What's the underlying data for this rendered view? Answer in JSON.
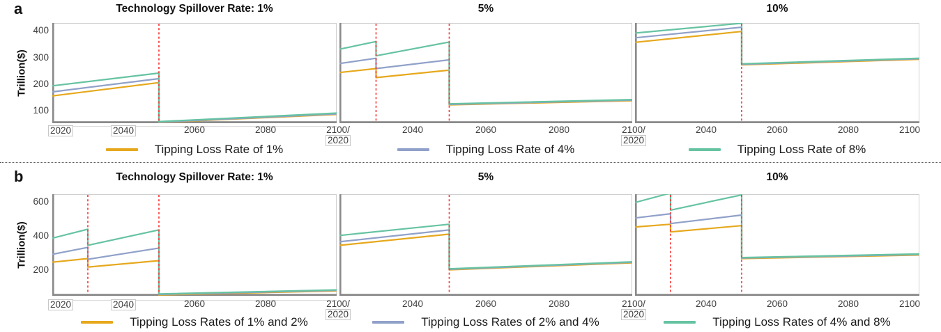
{
  "colors": {
    "gold": "#E6A81C",
    "blue": "#90A1C9",
    "green": "#66C3A2",
    "tipping_dash": "#FA3A3A",
    "axis_dark": "#8A8A8A",
    "axis_light": "#CFCFCF"
  },
  "chart_data": {
    "type": "line",
    "x_unit": "year",
    "xlim": [
      2020,
      2100
    ],
    "rows": [
      {
        "label": "a",
        "ylabel": "Trillion($)",
        "ylim": [
          52,
          430
        ],
        "y_ticks": [
          100,
          200,
          300,
          400
        ],
        "legend": [
          {
            "color": "gold",
            "label": "Tipping Loss Rate of 1%"
          },
          {
            "color": "blue",
            "label": "Tipping Loss Rate of 4%"
          },
          {
            "color": "green",
            "label": "Tipping Loss Rate of 8%"
          }
        ],
        "boundaries": [
          {
            "between": [
              0,
              1
            ],
            "top": "2100/",
            "bottom": "2020",
            "bottom_boxed": true
          },
          {
            "between": [
              1,
              2
            ],
            "top": "2100/",
            "bottom": "2020",
            "bottom_boxed": true
          }
        ],
        "panels": [
          {
            "title": "Technology Spillover Rate: 1%",
            "tipping_years": [
              2050
            ],
            "x_ticks": [
              {
                "year": 2020,
                "label": "2020",
                "boxed": true
              },
              {
                "year": 2040,
                "label": "2040",
                "boxed": true
              },
              {
                "year": 2060,
                "label": "2060"
              },
              {
                "year": 2080,
                "label": "2080"
              }
            ],
            "series": [
              {
                "color": "gold",
                "points": [
                  [
                    2020,
                    155
                  ],
                  [
                    2050,
                    205
                  ],
                  [
                    2050,
                    55
                  ],
                  [
                    2100,
                    85
                  ]
                ]
              },
              {
                "color": "blue",
                "points": [
                  [
                    2020,
                    170
                  ],
                  [
                    2050,
                    220
                  ],
                  [
                    2050,
                    56
                  ],
                  [
                    2100,
                    87
                  ]
                ]
              },
              {
                "color": "green",
                "points": [
                  [
                    2020,
                    193
                  ],
                  [
                    2050,
                    241
                  ],
                  [
                    2050,
                    58
                  ],
                  [
                    2100,
                    90
                  ]
                ]
              }
            ]
          },
          {
            "title": "5%",
            "tipping_years": [
              2030,
              2050
            ],
            "x_ticks": [
              {
                "year": 2040,
                "label": "2040"
              },
              {
                "year": 2060,
                "label": "2060"
              },
              {
                "year": 2080,
                "label": "2080"
              }
            ],
            "series": [
              {
                "color": "gold",
                "points": [
                  [
                    2020,
                    243
                  ],
                  [
                    2030,
                    258
                  ],
                  [
                    2030,
                    224
                  ],
                  [
                    2050,
                    252
                  ],
                  [
                    2050,
                    121
                  ],
                  [
                    2100,
                    137
                  ]
                ]
              },
              {
                "color": "blue",
                "points": [
                  [
                    2020,
                    277
                  ],
                  [
                    2030,
                    297
                  ],
                  [
                    2030,
                    258
                  ],
                  [
                    2050,
                    291
                  ],
                  [
                    2050,
                    123
                  ],
                  [
                    2100,
                    139
                  ]
                ]
              },
              {
                "color": "green",
                "points": [
                  [
                    2020,
                    331
                  ],
                  [
                    2030,
                    360
                  ],
                  [
                    2030,
                    306
                  ],
                  [
                    2050,
                    358
                  ],
                  [
                    2050,
                    125
                  ],
                  [
                    2100,
                    141
                  ]
                ]
              }
            ]
          },
          {
            "title": "10%",
            "tipping_years": [
              2050
            ],
            "x_ticks": [
              {
                "year": 2040,
                "label": "2040"
              },
              {
                "year": 2060,
                "label": "2060"
              },
              {
                "year": 2080,
                "label": "2080"
              },
              {
                "year": 2100,
                "label": "2100"
              }
            ],
            "series": [
              {
                "color": "gold",
                "points": [
                  [
                    2020,
                    357
                  ],
                  [
                    2050,
                    398
                  ],
                  [
                    2050,
                    272
                  ],
                  [
                    2100,
                    293
                  ]
                ]
              },
              {
                "color": "blue",
                "points": [
                  [
                    2020,
                    374
                  ],
                  [
                    2050,
                    414
                  ],
                  [
                    2050,
                    274
                  ],
                  [
                    2100,
                    295
                  ]
                ]
              },
              {
                "color": "green",
                "points": [
                  [
                    2020,
                    392
                  ],
                  [
                    2050,
                    429
                  ],
                  [
                    2050,
                    276
                  ],
                  [
                    2100,
                    297
                  ]
                ]
              }
            ]
          }
        ]
      },
      {
        "label": "b",
        "ylabel": "Trillion($)",
        "ylim": [
          47,
          645
        ],
        "y_ticks": [
          200,
          400,
          600
        ],
        "legend": [
          {
            "color": "gold",
            "label": "Tipping Loss Rates of 1% and 2%"
          },
          {
            "color": "blue",
            "label": "Tipping Loss Rates of 2% and 4%"
          },
          {
            "color": "green",
            "label": "Tipping Loss Rates of 4% and 8%"
          }
        ],
        "boundaries": [
          {
            "between": [
              0,
              1
            ],
            "top": "2100/",
            "bottom": "2020",
            "bottom_boxed": true
          },
          {
            "between": [
              1,
              2
            ],
            "top": "2100/",
            "bottom": "2020",
            "bottom_boxed": true
          }
        ],
        "panels": [
          {
            "title": "Technology Spillover Rate: 1%",
            "tipping_years": [
              2030,
              2050
            ],
            "x_ticks": [
              {
                "year": 2020,
                "label": "2020",
                "boxed": true
              },
              {
                "year": 2040,
                "label": "2040",
                "boxed": true
              },
              {
                "year": 2060,
                "label": "2060"
              },
              {
                "year": 2080,
                "label": "2080"
              }
            ],
            "series": [
              {
                "color": "gold",
                "points": [
                  [
                    2020,
                    245
                  ],
                  [
                    2030,
                    266
                  ],
                  [
                    2030,
                    216
                  ],
                  [
                    2050,
                    254
                  ],
                  [
                    2050,
                    52
                  ],
                  [
                    2100,
                    76
                  ]
                ]
              },
              {
                "color": "blue",
                "points": [
                  [
                    2020,
                    291
                  ],
                  [
                    2030,
                    332
                  ],
                  [
                    2030,
                    262
                  ],
                  [
                    2050,
                    328
                  ],
                  [
                    2050,
                    55
                  ],
                  [
                    2100,
                    79
                  ]
                ]
              },
              {
                "color": "green",
                "points": [
                  [
                    2020,
                    386
                  ],
                  [
                    2030,
                    439
                  ],
                  [
                    2030,
                    344
                  ],
                  [
                    2050,
                    435
                  ],
                  [
                    2050,
                    58
                  ],
                  [
                    2100,
                    82
                  ]
                ]
              }
            ]
          },
          {
            "title": "5%",
            "tipping_years": [
              2050
            ],
            "x_ticks": [
              {
                "year": 2040,
                "label": "2040"
              },
              {
                "year": 2060,
                "label": "2060"
              },
              {
                "year": 2080,
                "label": "2080"
              }
            ],
            "series": [
              {
                "color": "gold",
                "points": [
                  [
                    2020,
                    344
                  ],
                  [
                    2050,
                    410
                  ],
                  [
                    2050,
                    200
                  ],
                  [
                    2100,
                    241
                  ]
                ]
              },
              {
                "color": "blue",
                "points": [
                  [
                    2020,
                    365
                  ],
                  [
                    2050,
                    435
                  ],
                  [
                    2050,
                    203
                  ],
                  [
                    2100,
                    244
                  ]
                ]
              },
              {
                "color": "green",
                "points": [
                  [
                    2020,
                    402
                  ],
                  [
                    2050,
                    468
                  ],
                  [
                    2050,
                    206
                  ],
                  [
                    2100,
                    247
                  ]
                ]
              }
            ]
          },
          {
            "title": "10%",
            "tipping_years": [
              2030,
              2050
            ],
            "x_ticks": [
              {
                "year": 2040,
                "label": "2040"
              },
              {
                "year": 2060,
                "label": "2060"
              },
              {
                "year": 2080,
                "label": "2080"
              },
              {
                "year": 2100,
                "label": "2100"
              }
            ],
            "series": [
              {
                "color": "gold",
                "points": [
                  [
                    2020,
                    452
                  ],
                  [
                    2030,
                    468
                  ],
                  [
                    2030,
                    423
                  ],
                  [
                    2050,
                    460
                  ],
                  [
                    2050,
                    266
                  ],
                  [
                    2100,
                    287
                  ]
                ]
              },
              {
                "color": "blue",
                "points": [
                  [
                    2020,
                    505
                  ],
                  [
                    2030,
                    530
                  ],
                  [
                    2030,
                    472
                  ],
                  [
                    2050,
                    522
                  ],
                  [
                    2050,
                    269
                  ],
                  [
                    2100,
                    290
                  ]
                ]
              },
              {
                "color": "green",
                "points": [
                  [
                    2020,
                    596
                  ],
                  [
                    2030,
                    652
                  ],
                  [
                    2030,
                    551
                  ],
                  [
                    2050,
                    641
                  ],
                  [
                    2050,
                    272
                  ],
                  [
                    2100,
                    293
                  ]
                ]
              }
            ]
          }
        ]
      }
    ]
  }
}
